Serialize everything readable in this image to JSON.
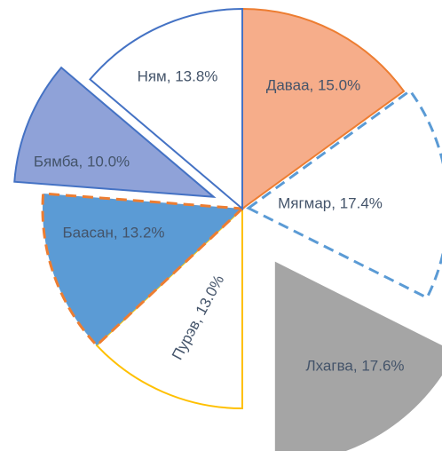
{
  "chart_data": {
    "type": "pie",
    "values": [
      15.0,
      17.4,
      17.6,
      13.0,
      13.2,
      10.0,
      13.8
    ],
    "value_labels": [
      "Даваа, 15.0%",
      "Мягмар, 17.4%",
      "Лхагва, 17.6%",
      "Пурэв, 13.0%",
      "Баасан, 13.2%",
      "Бямба, 10.0%",
      "Ням, 13.8%"
    ],
    "colors": [
      "#f6ad8a",
      "#ffffff",
      "#a5a5a5",
      "#ffffff",
      "#5b9bd5",
      "#8fa2d8",
      "#ffffff"
    ],
    "outline_colors": [
      "#ed7d31",
      "#5b9bd5",
      "#a5a5a5",
      "#ffc000",
      "#ed7d31",
      "#4472c4",
      "#4472c4"
    ],
    "dashed": [
      false,
      true,
      false,
      false,
      true,
      false,
      false
    ]
  }
}
